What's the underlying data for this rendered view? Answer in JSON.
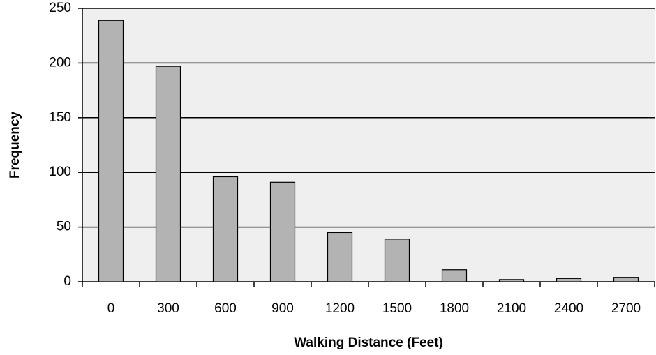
{
  "chart_data": {
    "type": "bar",
    "categories": [
      "0",
      "300",
      "600",
      "900",
      "1200",
      "1500",
      "1800",
      "2100",
      "2400",
      "2700"
    ],
    "values": [
      239,
      197,
      96,
      91,
      45,
      39,
      11,
      2,
      3,
      4
    ],
    "color": "#b3b3b3",
    "x_label": "Walking Distance (Feet)",
    "y_label": "Frequency",
    "ylim": [
      0,
      250
    ],
    "yticks": [
      0,
      50,
      100,
      150,
      200,
      250
    ],
    "grid": true
  }
}
